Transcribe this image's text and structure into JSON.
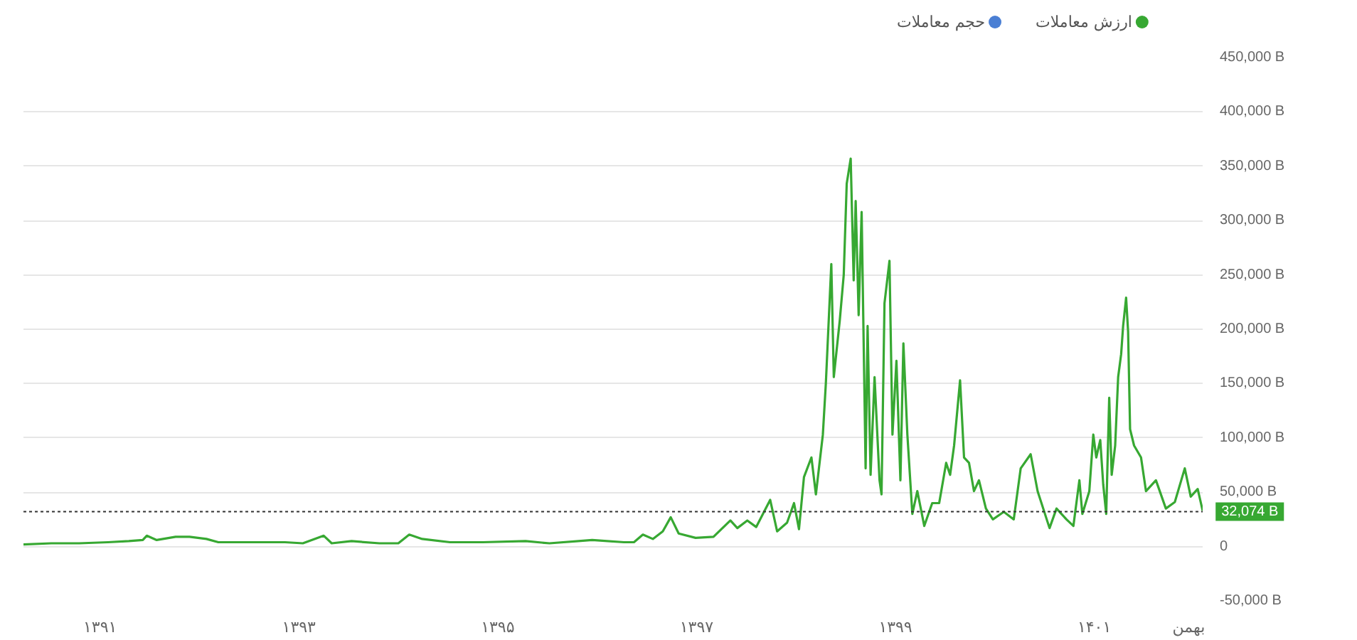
{
  "chart_data": {
    "type": "line",
    "xlim": [
      1390.23,
      1402.09
    ],
    "xticks": [
      {
        "value": 1391,
        "label": "۱۳۹۱"
      },
      {
        "value": 1393,
        "label": "۱۳۹۳"
      },
      {
        "value": 1395,
        "label": "۱۳۹۵"
      },
      {
        "value": 1397,
        "label": "۱۳۹۷"
      },
      {
        "value": 1399,
        "label": "۱۳۹۹"
      },
      {
        "value": 1401,
        "label": "۱۴۰۱"
      },
      {
        "value": 1401.95,
        "label": "بهمن"
      }
    ],
    "ylim": [
      -50000,
      450000
    ],
    "yticks": [
      {
        "value": -50000,
        "label": "-50,000 B"
      },
      0,
      {
        "value": 50000,
        "label": "50,000 B"
      },
      {
        "value": 100000,
        "label": "100,000 B"
      },
      {
        "value": 150000,
        "label": "150,000 B"
      },
      {
        "value": 200000,
        "label": "200,000 B"
      },
      {
        "value": 250000,
        "label": "250,000 B"
      },
      {
        "value": 300000,
        "label": "300,000 B"
      },
      {
        "value": 350000,
        "label": "350,000 B"
      },
      {
        "value": 400000,
        "label": "400,000 B"
      },
      {
        "value": 450000,
        "label": "450,000 B"
      }
    ],
    "grid": "y",
    "legend": "top right",
    "x": [
      1390.23,
      1390.51,
      1390.79,
      1391.08,
      1391.29,
      1391.43,
      1391.47,
      1391.57,
      1391.76,
      1391.9,
      1392.07,
      1392.19,
      1392.47,
      1392.86,
      1393.04,
      1393.25,
      1393.33,
      1393.53,
      1393.81,
      1394.0,
      1394.11,
      1394.24,
      1394.52,
      1394.85,
      1395.28,
      1395.52,
      1395.95,
      1396.27,
      1396.37,
      1396.46,
      1396.56,
      1396.66,
      1396.74,
      1396.82,
      1396.99,
      1397.17,
      1397.34,
      1397.41,
      1397.51,
      1397.6,
      1397.74,
      1397.81,
      1397.91,
      1397.98,
      1398.03,
      1398.08,
      1398.155,
      1398.2,
      1398.27,
      1398.3,
      1398.32,
      1398.355,
      1398.38,
      1398.44,
      1398.48,
      1398.51,
      1398.55,
      1398.58,
      1398.6,
      1398.63,
      1398.66,
      1398.7,
      1398.72,
      1398.75,
      1398.79,
      1398.84,
      1398.86,
      1398.89,
      1398.94,
      1398.97,
      1399.01,
      1399.05,
      1399.08,
      1399.12,
      1399.17,
      1399.22,
      1399.29,
      1399.37,
      1399.44,
      1399.51,
      1399.55,
      1399.59,
      1399.65,
      1399.69,
      1399.74,
      1399.79,
      1399.84,
      1399.91,
      1399.98,
      1400.09,
      1400.19,
      1400.26,
      1400.36,
      1400.43,
      1400.55,
      1400.62,
      1400.72,
      1400.79,
      1400.85,
      1400.88,
      1400.95,
      1400.99,
      1401.02,
      1401.06,
      1401.09,
      1401.12,
      1401.15,
      1401.175,
      1401.21,
      1401.24,
      1401.27,
      1401.29,
      1401.32,
      1401.34,
      1401.36,
      1401.4,
      1401.47,
      1401.52,
      1401.62,
      1401.72,
      1401.81,
      1401.91,
      1401.97,
      1402.04,
      1402.09
    ],
    "series": [
      {
        "name": "ارزش معاملات",
        "color": "#37a832",
        "values": [
          2000,
          3000,
          3000,
          4000,
          5000,
          6000,
          10000,
          6000,
          9000,
          9000,
          7000,
          4000,
          4000,
          4000,
          3000,
          10000,
          3000,
          5000,
          3000,
          3000,
          11000,
          7000,
          4000,
          4000,
          5000,
          3000,
          6000,
          4000,
          4000,
          11000,
          7000,
          14000,
          27000,
          12000,
          8000,
          9000,
          24000,
          17000,
          24000,
          18000,
          43000,
          14000,
          22000,
          40000,
          16000,
          64000,
          82000,
          48000,
          103000,
          150000,
          190000,
          260000,
          156000,
          208000,
          250000,
          334000,
          357000,
          245000,
          318000,
          213000,
          308000,
          72000,
          203000,
          66000,
          156000,
          61000,
          48000,
          224000,
          263000,
          103000,
          171000,
          61000,
          187000,
          103000,
          30000,
          51000,
          19000,
          40000,
          40000,
          77000,
          66000,
          93000,
          153000,
          82000,
          77000,
          51000,
          61000,
          35000,
          25000,
          32000,
          25000,
          72000,
          85000,
          51000,
          17000,
          35000,
          25000,
          19000,
          61000,
          30000,
          51000,
          103000,
          82000,
          98000,
          57000,
          30000,
          137000,
          66000,
          93000,
          156000,
          177000,
          203000,
          229000,
          198000,
          108000,
          93000,
          82000,
          51000,
          61000,
          35000,
          41000,
          72000,
          46000,
          53000,
          33000
        ]
      },
      {
        "name": "حجم معاملات",
        "color": "#4a7fd4",
        "values": [
          null,
          null,
          null,
          null,
          null,
          null,
          null,
          null,
          null,
          null,
          null,
          null,
          null,
          null,
          null,
          null,
          null,
          null,
          null,
          null,
          null,
          null,
          null,
          null,
          null,
          null,
          null,
          null,
          null,
          null,
          null,
          null,
          null,
          null,
          null,
          null,
          null,
          null,
          null,
          null,
          null,
          null,
          null,
          null,
          null,
          null,
          null,
          null,
          null,
          null,
          null,
          null,
          null,
          null,
          null,
          null,
          null,
          null,
          null,
          null,
          null,
          null,
          null,
          null,
          null,
          null,
          null,
          null,
          null,
          null,
          null,
          null,
          null,
          null,
          null,
          null,
          null,
          null,
          null,
          null,
          null,
          null,
          null,
          null,
          null,
          null,
          null,
          null,
          null,
          null,
          null,
          null,
          null,
          null,
          null,
          null,
          null,
          null,
          null,
          null,
          null,
          null,
          null,
          null,
          null,
          null,
          null,
          null,
          null,
          null,
          null,
          null,
          null,
          null,
          null,
          null,
          null,
          null,
          null,
          null,
          null,
          null,
          null,
          null,
          null
        ]
      }
    ],
    "ref_lines": [
      {
        "axis": "y",
        "value": 32074,
        "label": "32,074 B",
        "color": "#333333",
        "line_style": "dotted"
      }
    ]
  }
}
